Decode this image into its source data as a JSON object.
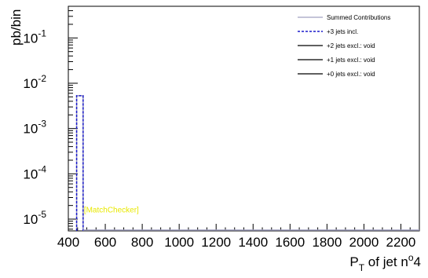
{
  "chart_data": {
    "type": "histogram",
    "xlabel": "P",
    "xlabel_sub": "T",
    "xlabel_rest": " of jet n",
    "xlabel_sup": "o",
    "xlabel_tail": "4",
    "ylabel": "pb/bin",
    "xlim": [
      400,
      2300
    ],
    "ylim": [
      5.5e-06,
      0.5
    ],
    "yscale": "log",
    "x_ticks": [
      400,
      600,
      800,
      1000,
      1200,
      1400,
      1600,
      1800,
      2000,
      2200
    ],
    "y_ticks": [
      {
        "value": 0.1,
        "base": "10",
        "exp": "-1"
      },
      {
        "value": 0.01,
        "base": "10",
        "exp": "-2"
      },
      {
        "value": 0.001,
        "base": "10",
        "exp": "-3"
      },
      {
        "value": 0.0001,
        "base": "10",
        "exp": "-4"
      },
      {
        "value": 1e-05,
        "base": "10",
        "exp": "-5"
      }
    ],
    "series": [
      {
        "name": "Summed Contributions",
        "color": "#a0a0c0",
        "style": "solid",
        "bins": [
          {
            "x0": 445,
            "x1": 480,
            "y": 0.0053
          }
        ]
      },
      {
        "name": "+3 jets incl.",
        "color": "#1a1acc",
        "style": "dashed",
        "bins": [
          {
            "x0": 445,
            "x1": 480,
            "y": 0.0053
          }
        ]
      },
      {
        "name": "+2 jets excl.: void",
        "color": "#000000",
        "style": "solid",
        "bins": []
      },
      {
        "name": "+1 jets excl.: void",
        "color": "#000000",
        "style": "solid",
        "bins": []
      },
      {
        "name": "+0 jets  excl.: void",
        "color": "#000000",
        "style": "solid",
        "bins": []
      }
    ],
    "annotation": {
      "text": "[MatchChecker]",
      "color": "#e8e800",
      "x": 480,
      "y": 1.6e-05
    },
    "legend_position": "top-right"
  }
}
